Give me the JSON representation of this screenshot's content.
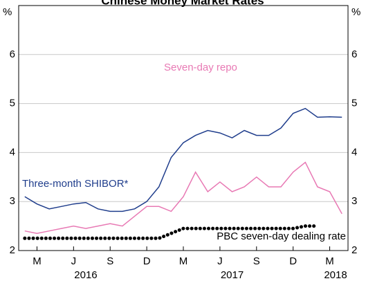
{
  "chart_data": {
    "type": "line",
    "title": "Chinese Money Market Rates",
    "y_unit": "%",
    "x": [
      "2016-02",
      "2016-03",
      "2016-04",
      "2016-05",
      "2016-06",
      "2016-07",
      "2016-08",
      "2016-09",
      "2016-10",
      "2016-11",
      "2016-12",
      "2017-01",
      "2017-02",
      "2017-03",
      "2017-04",
      "2017-05",
      "2017-06",
      "2017-07",
      "2017-08",
      "2017-09",
      "2017-10",
      "2017-11",
      "2017-12",
      "2018-01",
      "2018-02",
      "2018-03",
      "2018-04"
    ],
    "xlim": [
      "2016-02",
      "2018-04"
    ],
    "xticks": [
      {
        "value": "2016-03",
        "label": "M"
      },
      {
        "value": "2016-06",
        "label": "J"
      },
      {
        "value": "2016-09",
        "label": "S"
      },
      {
        "value": "2016-12",
        "label": "D"
      },
      {
        "value": "2017-03",
        "label": "M"
      },
      {
        "value": "2017-06",
        "label": "J"
      },
      {
        "value": "2017-09",
        "label": "S"
      },
      {
        "value": "2017-12",
        "label": "D"
      },
      {
        "value": "2018-03",
        "label": "M"
      }
    ],
    "years": [
      {
        "value": "2016-07",
        "label": "2016"
      },
      {
        "value": "2017-07",
        "label": "2017"
      },
      {
        "value": "2018-04",
        "label": "2018"
      }
    ],
    "ylim": [
      2,
      7
    ],
    "yticks": [
      2,
      3,
      4,
      5,
      6
    ],
    "grid": true,
    "series": [
      {
        "name": "Seven-day repo",
        "color": "#e879b4",
        "style": "solid",
        "values": [
          2.4,
          2.35,
          2.4,
          2.45,
          2.5,
          2.45,
          2.5,
          2.55,
          2.5,
          2.7,
          2.9,
          2.9,
          2.8,
          3.1,
          3.6,
          3.2,
          3.4,
          3.2,
          3.3,
          3.5,
          3.3,
          3.3,
          3.6,
          3.8,
          3.3,
          3.2,
          2.75
        ]
      },
      {
        "name": "Three-month SHIBOR*",
        "color": "#1f3d8c",
        "style": "solid",
        "values": [
          3.1,
          2.95,
          2.85,
          2.9,
          2.95,
          2.98,
          2.85,
          2.8,
          2.8,
          2.85,
          3.0,
          3.3,
          3.9,
          4.2,
          4.35,
          4.45,
          4.4,
          4.3,
          4.45,
          4.35,
          4.35,
          4.5,
          4.8,
          4.9,
          4.72,
          4.73,
          4.72
        ]
      },
      {
        "name": "PBC seven-day dealing rate",
        "color": "#000000",
        "style": "dotted",
        "values": [
          2.25,
          2.25,
          2.25,
          2.25,
          2.25,
          2.25,
          2.25,
          2.25,
          2.25,
          2.25,
          2.25,
          2.25,
          2.35,
          2.45,
          2.45,
          2.45,
          2.45,
          2.45,
          2.45,
          2.45,
          2.45,
          2.45,
          2.45,
          2.5,
          2.5,
          null,
          null
        ]
      }
    ]
  }
}
